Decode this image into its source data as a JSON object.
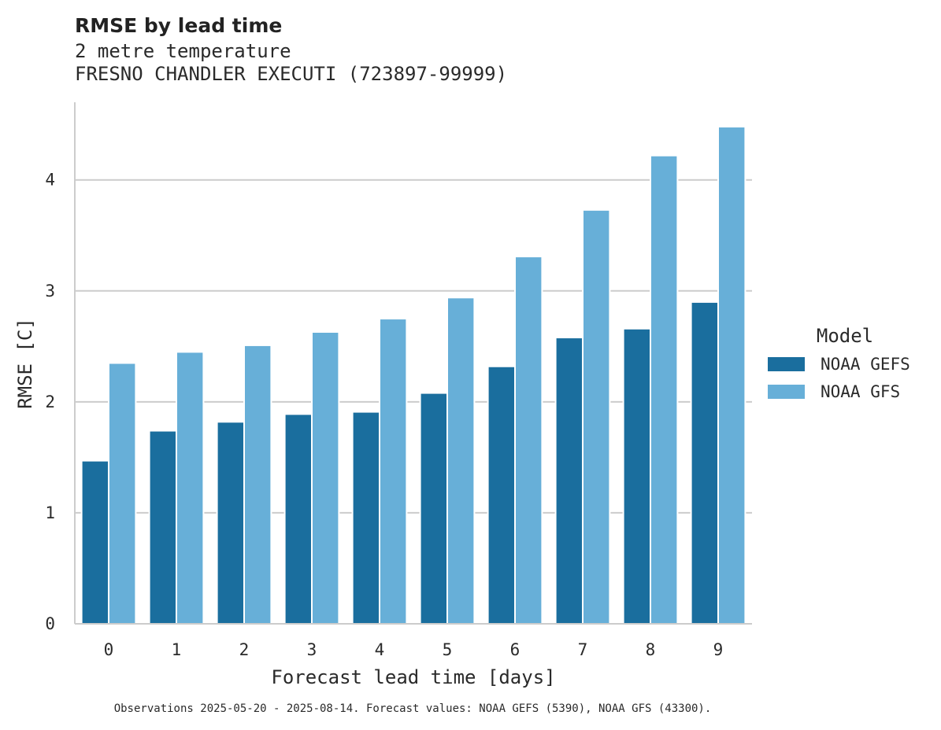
{
  "chart_data": {
    "type": "bar",
    "title": "RMSE by lead time",
    "subtitle_lines": [
      "2 metre temperature",
      "FRESNO CHANDLER EXECUTI (723897-99999)"
    ],
    "xlabel": "Forecast lead time [days]",
    "ylabel": "RMSE [C]",
    "categories": [
      "0",
      "1",
      "2",
      "3",
      "4",
      "5",
      "6",
      "7",
      "8",
      "9"
    ],
    "ylim": [
      0,
      4.7
    ],
    "yticks": [
      "0",
      "1",
      "2",
      "3",
      "4"
    ],
    "grid": "horizontal",
    "legend": {
      "title": "Model",
      "placement": "right"
    },
    "series": [
      {
        "name": "NOAA GEFS",
        "color": "#1a6e9e",
        "values": [
          1.47,
          1.74,
          1.82,
          1.89,
          1.91,
          2.08,
          2.32,
          2.58,
          2.66,
          2.9
        ]
      },
      {
        "name": "NOAA GFS",
        "color": "#67afd8",
        "values": [
          2.35,
          2.45,
          2.51,
          2.63,
          2.75,
          2.94,
          3.31,
          3.73,
          4.22,
          4.48
        ]
      }
    ],
    "footnote": "Observations 2025-05-20 - 2025-08-14. Forecast values: NOAA GEFS (5390), NOAA GFS (43300)."
  }
}
